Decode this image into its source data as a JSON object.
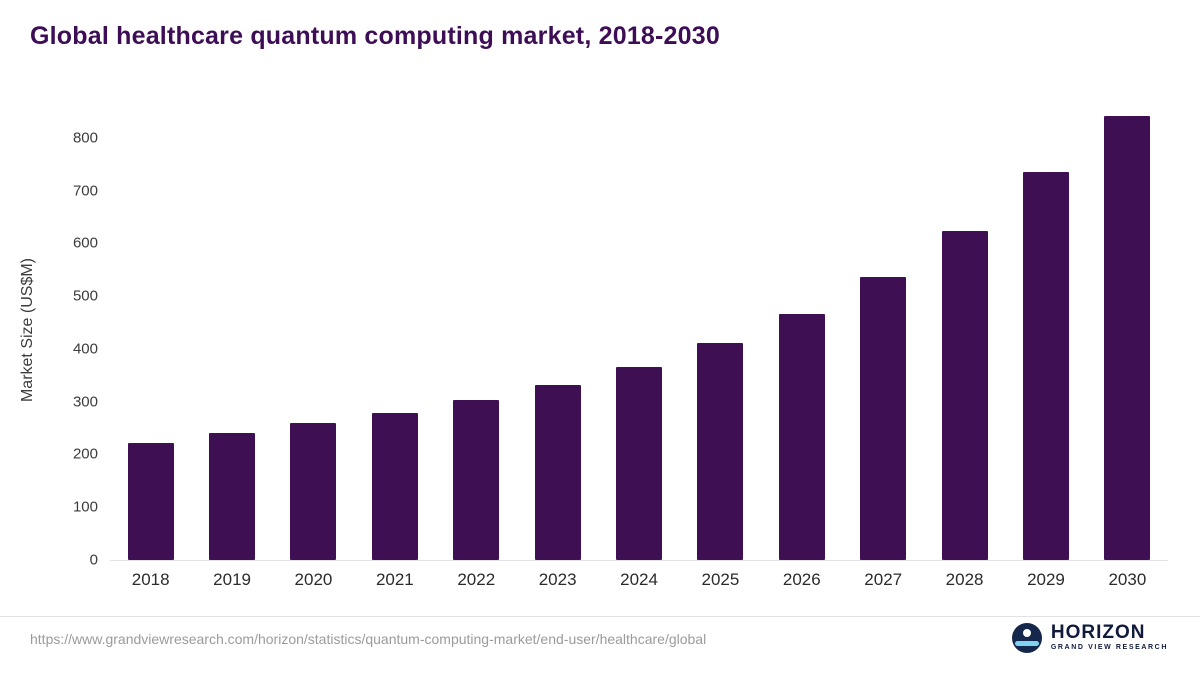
{
  "title": "Global healthcare quantum computing market, 2018-2030",
  "chart_data": {
    "type": "bar",
    "title": "Global healthcare quantum computing market, 2018-2030",
    "categories": [
      "2018",
      "2019",
      "2020",
      "2021",
      "2022",
      "2023",
      "2024",
      "2025",
      "2026",
      "2027",
      "2028",
      "2029",
      "2030"
    ],
    "values": [
      222,
      241,
      260,
      279,
      303,
      331,
      366,
      411,
      466,
      536,
      624,
      736,
      841
    ],
    "xlabel": "",
    "ylabel": "Market Size (US$M)",
    "ylim": [
      0,
      862
    ],
    "yticks": [
      0,
      100,
      200,
      300,
      400,
      500,
      600,
      700,
      800
    ],
    "grid": "off",
    "legend": "none",
    "bar_color": "#3e1053"
  },
  "colors": {
    "title_text": "#3d0e56",
    "bar": "#3e1053",
    "axis_text": "#3c3c3c",
    "url_text": "#9b9b9b",
    "logo_navy": "#15284b",
    "logo_blue": "#7fd2f2"
  },
  "footer": {
    "source_url": "https://www.grandviewresearch.com/horizon/statistics/quantum-computing-market/end-user/healthcare/global",
    "logo_title": "HORIZON",
    "logo_subtitle": "GRAND VIEW RESEARCH"
  }
}
